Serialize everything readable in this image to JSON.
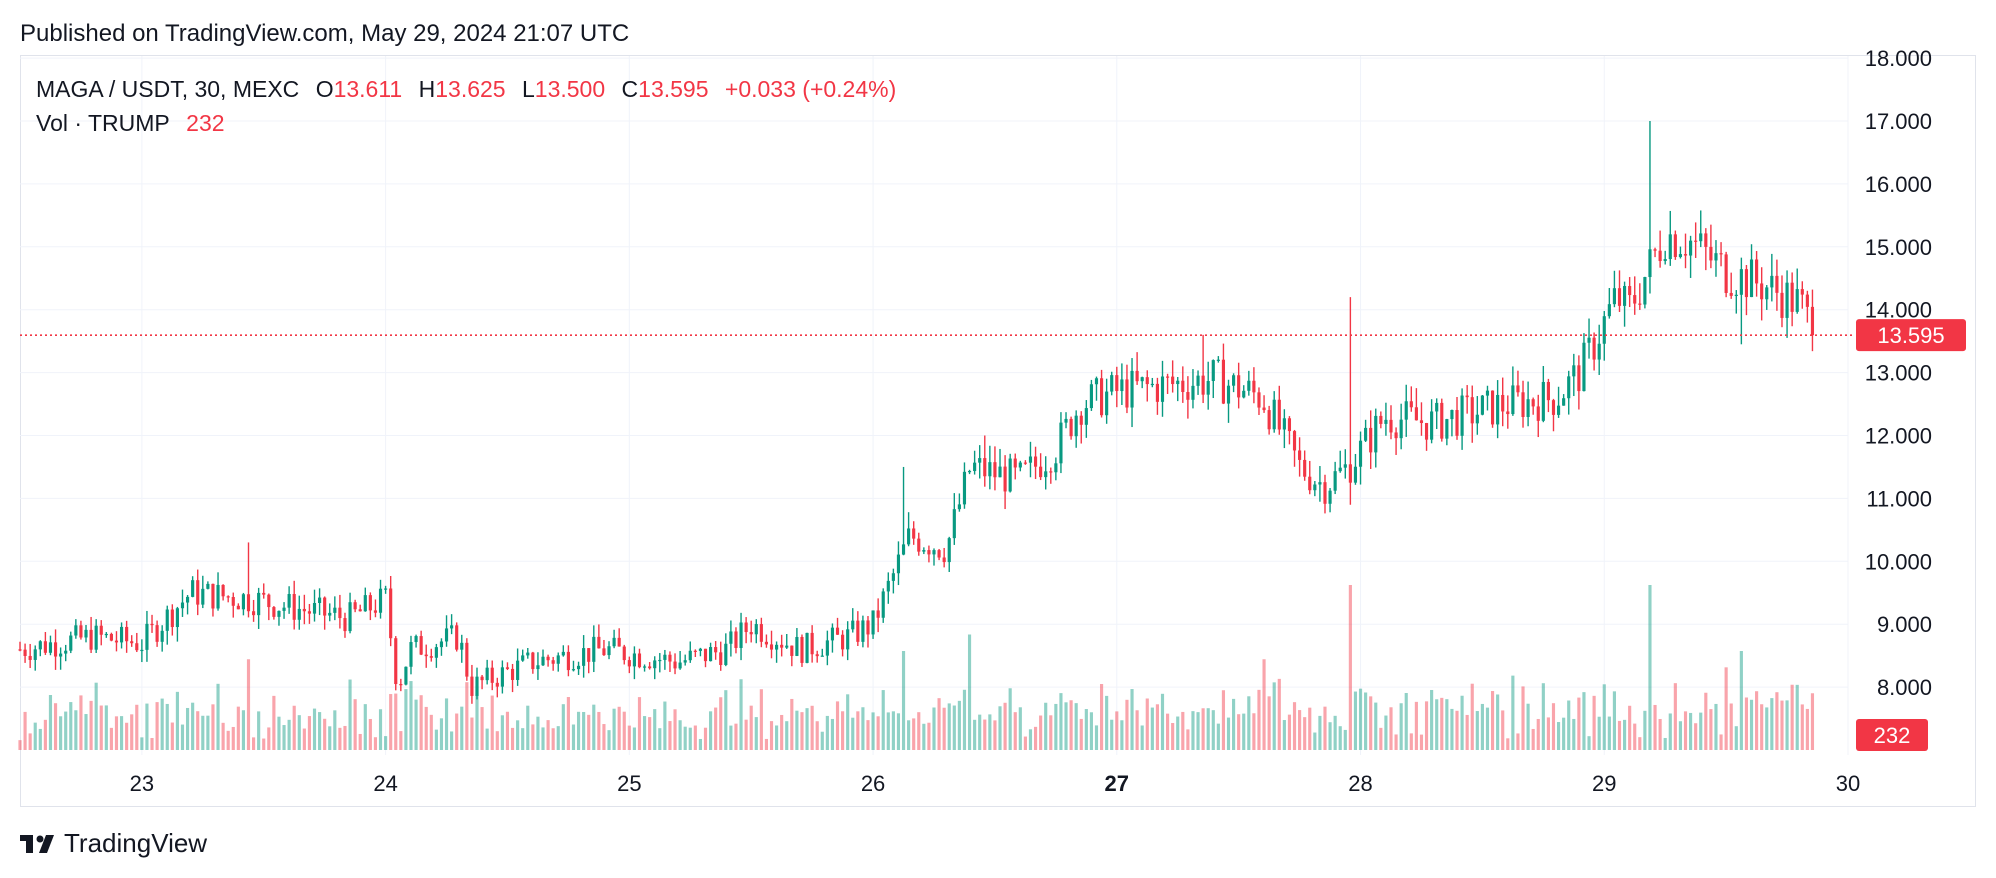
{
  "header": {
    "published": "Published on TradingView.com, May 29, 2024 21:07 UTC"
  },
  "legend": {
    "symbol": "MAGA / USDT, 30, MEXC",
    "open_label": "O",
    "open": "13.611",
    "high_label": "H",
    "high": "13.625",
    "low_label": "L",
    "low": "13.500",
    "close_label": "C",
    "close": "13.595",
    "change": "+0.033 (+0.24%)",
    "vol_label": "Vol · TRUMP",
    "vol": "232"
  },
  "footer": {
    "brand": "TradingView"
  },
  "colors": {
    "up": "#089981",
    "down": "#f23645",
    "grid": "#f0f3fa",
    "text": "#131722"
  },
  "chart_data": {
    "type": "candlestick",
    "title": "MAGA / USDT, 30, MEXC",
    "price_axis": {
      "ylim": [
        7.0,
        18.0
      ],
      "ticks": [
        "18.000",
        "17.000",
        "16.000",
        "15.000",
        "14.000",
        "13.000",
        "12.000",
        "11.000",
        "10.000",
        "9.000",
        "8.000"
      ]
    },
    "time_axis": {
      "xlim": [
        22.5,
        30.0
      ],
      "ticks": [
        {
          "label": "23",
          "value": 23
        },
        {
          "label": "24",
          "value": 24
        },
        {
          "label": "25",
          "value": 25
        },
        {
          "label": "26",
          "value": 26
        },
        {
          "label": "27",
          "value": 27,
          "bold": true
        },
        {
          "label": "28",
          "value": 28
        },
        {
          "label": "29",
          "value": 29
        },
        {
          "label": "30",
          "value": 30
        }
      ]
    },
    "last_price": {
      "value": 13.595,
      "label": "13.595"
    },
    "last_volume": {
      "label": "232"
    },
    "price_path": [
      [
        22.5,
        8.6
      ],
      [
        22.8,
        8.8
      ],
      [
        23.0,
        8.7
      ],
      [
        23.2,
        9.5
      ],
      [
        23.45,
        9.4
      ],
      [
        23.7,
        9.2
      ],
      [
        23.85,
        9.1
      ],
      [
        24.0,
        9.4
      ],
      [
        24.05,
        8.0
      ],
      [
        24.1,
        8.6
      ],
      [
        24.3,
        8.8
      ],
      [
        24.35,
        8.0
      ],
      [
        24.6,
        8.4
      ],
      [
        24.9,
        8.6
      ],
      [
        25.2,
        8.4
      ],
      [
        25.4,
        8.6
      ],
      [
        25.5,
        9.0
      ],
      [
        25.7,
        8.6
      ],
      [
        25.9,
        8.8
      ],
      [
        26.0,
        9.0
      ],
      [
        26.15,
        10.4
      ],
      [
        26.3,
        10.2
      ],
      [
        26.4,
        11.5
      ],
      [
        26.6,
        11.3
      ],
      [
        26.75,
        11.8
      ],
      [
        26.85,
        12.5
      ],
      [
        27.0,
        12.7
      ],
      [
        27.2,
        12.8
      ],
      [
        27.4,
        12.9
      ],
      [
        27.6,
        12.6
      ],
      [
        27.75,
        11.5
      ],
      [
        27.85,
        11.2
      ],
      [
        27.95,
        11.5
      ],
      [
        28.1,
        12.3
      ],
      [
        28.3,
        12.2
      ],
      [
        28.6,
        12.5
      ],
      [
        28.8,
        12.6
      ],
      [
        28.9,
        13.0
      ],
      [
        28.95,
        13.4
      ],
      [
        29.05,
        14.2
      ],
      [
        29.1,
        14.0
      ],
      [
        29.2,
        14.8
      ],
      [
        29.25,
        15.2
      ],
      [
        29.35,
        15.1
      ],
      [
        29.5,
        14.6
      ],
      [
        29.65,
        14.4
      ],
      [
        29.8,
        14.1
      ],
      [
        29.87,
        13.6
      ]
    ],
    "spikes": [
      {
        "x": 23.44,
        "high": 10.3
      },
      {
        "x": 26.12,
        "high": 11.5
      },
      {
        "x": 26.46,
        "high": 12.0
      },
      {
        "x": 27.35,
        "high": 13.6
      },
      {
        "x": 27.95,
        "high": 14.2,
        "low": 10.9
      },
      {
        "x": 29.19,
        "high": 17.0
      },
      {
        "x": 29.56,
        "low": 13.45
      }
    ],
    "volume_spikes": [
      {
        "x": 23.44,
        "v": 0.55
      },
      {
        "x": 26.12,
        "v": 0.6
      },
      {
        "x": 26.4,
        "v": 0.7
      },
      {
        "x": 27.6,
        "v": 0.55
      },
      {
        "x": 27.95,
        "v": 1.0
      },
      {
        "x": 29.19,
        "v": 1.0
      },
      {
        "x": 29.56,
        "v": 0.6
      }
    ]
  }
}
